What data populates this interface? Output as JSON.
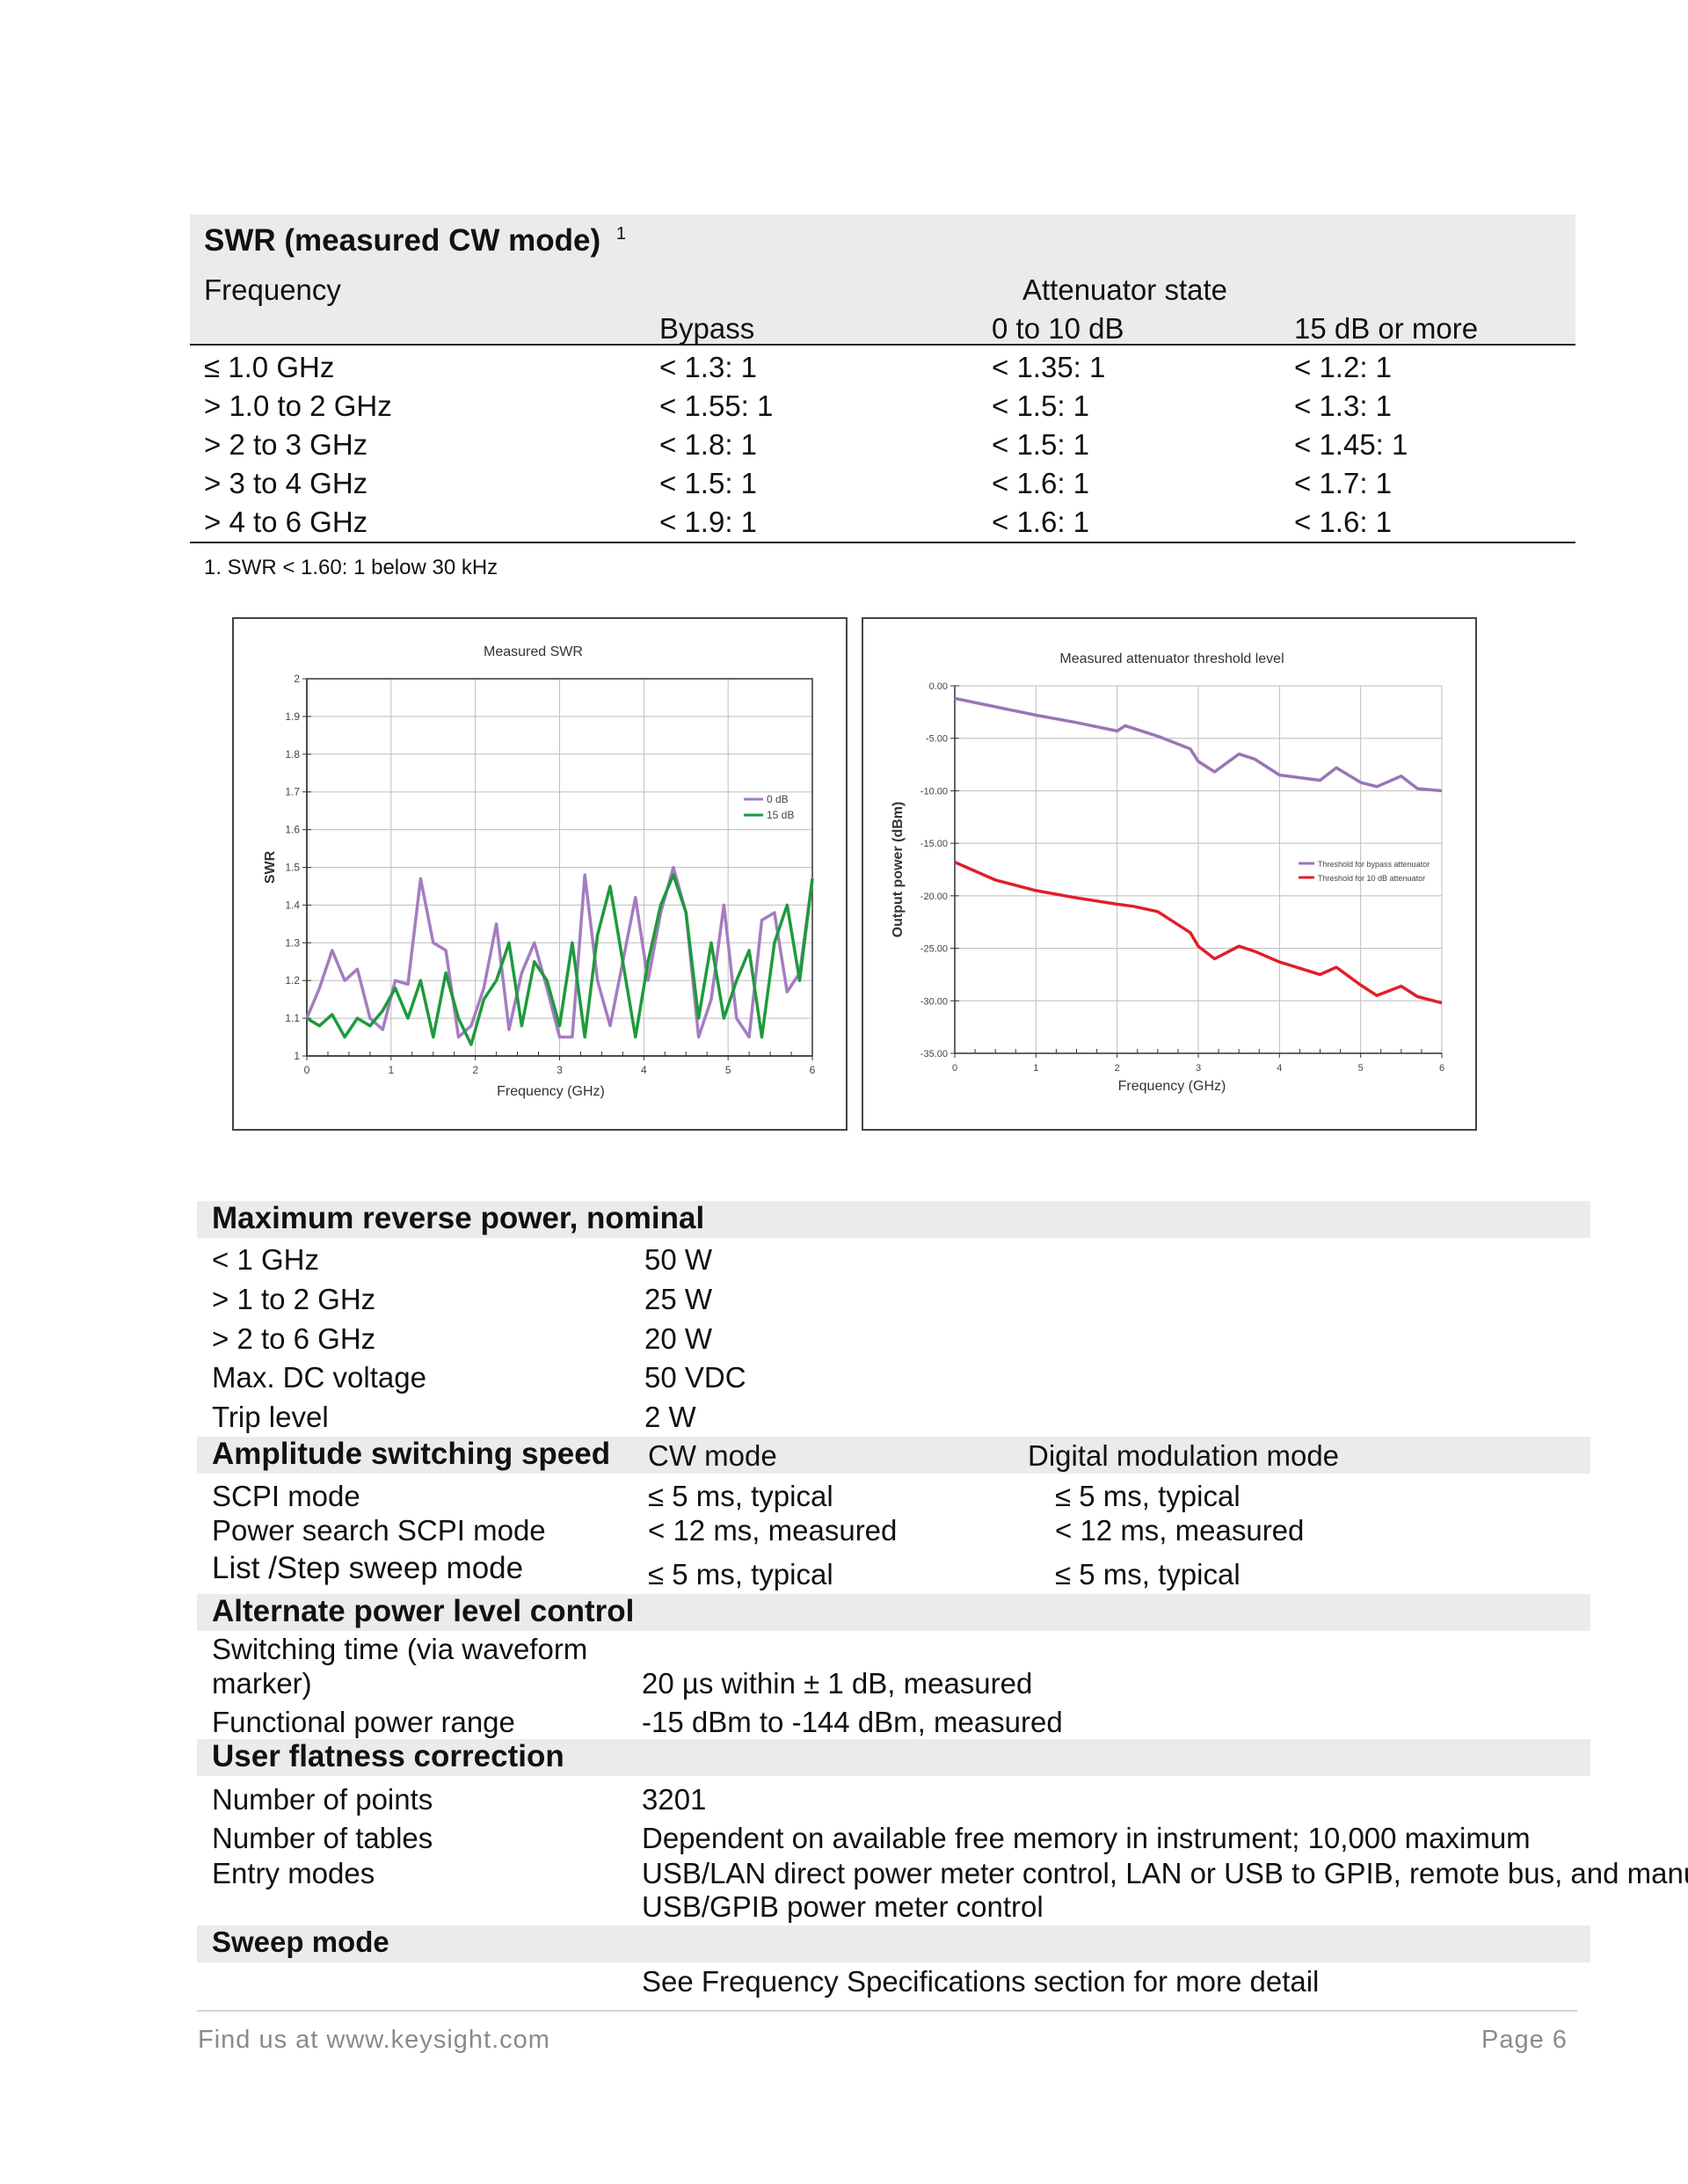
{
  "swr": {
    "title": "SWR (measured CW mode)",
    "title_note": "1",
    "frequency_label": "Frequency",
    "attenuator_label": "Attenuator state",
    "columns": [
      "Bypass",
      "0 to 10 dB",
      "15 dB or more"
    ],
    "rows": [
      {
        "freq": "≤ 1.0 GHz",
        "bypass": "< 1.3: 1",
        "a0_10": "< 1.35: 1",
        "a15": "< 1.2: 1"
      },
      {
        "freq": "> 1.0 to 2 GHz",
        "bypass": "< 1.55: 1",
        "a0_10": "< 1.5: 1",
        "a15": "< 1.3: 1"
      },
      {
        "freq": "> 2 to 3 GHz",
        "bypass": "< 1.8: 1",
        "a0_10": "< 1.5: 1",
        "a15": "< 1.45: 1"
      },
      {
        "freq": "> 3 to 4 GHz",
        "bypass": "< 1.5: 1",
        "a0_10": "< 1.6: 1",
        "a15": "< 1.7: 1"
      },
      {
        "freq": "> 4 to 6 GHz",
        "bypass": "< 1.9: 1",
        "a0_10": "< 1.6: 1",
        "a15": "< 1.6: 1"
      }
    ],
    "footnote": "1.  SWR < 1.60: 1 below 30 kHz"
  },
  "chart_data": [
    {
      "type": "line",
      "title": "Measured SWR",
      "xlabel": "Frequency (GHz)",
      "ylabel": "SWR",
      "xlim": [
        0,
        6
      ],
      "ylim": [
        1,
        2
      ],
      "x_ticks": [
        "0",
        "1",
        "2",
        "3",
        "4",
        "5",
        "6"
      ],
      "y_ticks": [
        "1",
        "1.1",
        "1.2",
        "1.3",
        "1.4",
        "1.5",
        "1.6",
        "1.7",
        "1.8",
        "1.9",
        "2"
      ],
      "grid": true,
      "legend_position": "right",
      "series": [
        {
          "name": "0 dB",
          "color": "#a57cc0",
          "x": [
            0,
            0.15,
            0.3,
            0.45,
            0.6,
            0.75,
            0.9,
            1.05,
            1.2,
            1.35,
            1.5,
            1.65,
            1.8,
            1.95,
            2.1,
            2.25,
            2.4,
            2.55,
            2.7,
            2.85,
            3.0,
            3.15,
            3.3,
            3.45,
            3.6,
            3.75,
            3.9,
            4.05,
            4.2,
            4.35,
            4.5,
            4.65,
            4.8,
            4.95,
            5.1,
            5.25,
            5.4,
            5.55,
            5.7,
            5.85,
            6.0
          ],
          "y": [
            1.1,
            1.18,
            1.28,
            1.2,
            1.23,
            1.1,
            1.07,
            1.2,
            1.19,
            1.47,
            1.3,
            1.28,
            1.05,
            1.08,
            1.18,
            1.35,
            1.07,
            1.22,
            1.3,
            1.18,
            1.05,
            1.05,
            1.48,
            1.2,
            1.08,
            1.25,
            1.42,
            1.2,
            1.38,
            1.5,
            1.38,
            1.05,
            1.15,
            1.4,
            1.1,
            1.05,
            1.36,
            1.38,
            1.17,
            1.22,
            1.47
          ]
        },
        {
          "name": "15 dB",
          "color": "#1e9a3c",
          "x": [
            0,
            0.15,
            0.3,
            0.45,
            0.6,
            0.75,
            0.9,
            1.05,
            1.2,
            1.35,
            1.5,
            1.65,
            1.8,
            1.95,
            2.1,
            2.25,
            2.4,
            2.55,
            2.7,
            2.85,
            3.0,
            3.15,
            3.3,
            3.45,
            3.6,
            3.75,
            3.9,
            4.05,
            4.2,
            4.35,
            4.5,
            4.65,
            4.8,
            4.95,
            5.1,
            5.25,
            5.4,
            5.55,
            5.7,
            5.85,
            6.0
          ],
          "y": [
            1.1,
            1.08,
            1.11,
            1.05,
            1.1,
            1.08,
            1.12,
            1.18,
            1.1,
            1.2,
            1.05,
            1.22,
            1.1,
            1.03,
            1.15,
            1.2,
            1.3,
            1.08,
            1.25,
            1.2,
            1.08,
            1.3,
            1.05,
            1.32,
            1.45,
            1.25,
            1.05,
            1.25,
            1.4,
            1.48,
            1.38,
            1.1,
            1.3,
            1.1,
            1.2,
            1.28,
            1.05,
            1.3,
            1.4,
            1.2,
            1.47
          ]
        }
      ]
    },
    {
      "type": "line",
      "title": "Measured attenuator threshold level",
      "xlabel": "Frequency  (GHz)",
      "ylabel": "Output power (dBm)",
      "xlim": [
        0,
        6
      ],
      "ylim": [
        -35,
        0
      ],
      "x_ticks": [
        "0",
        "1",
        "2",
        "3",
        "4",
        "5",
        "6"
      ],
      "y_ticks": [
        "0.00",
        "-5.00",
        "-10.00",
        "-15.00",
        "-20.00",
        "-25.00",
        "-30.00",
        "-35.00"
      ],
      "grid": true,
      "legend_position": "right",
      "series": [
        {
          "name": "Threshold for bypass attenuator",
          "color": "#9b74b5",
          "x": [
            0,
            0.5,
            1.0,
            1.5,
            2.0,
            2.1,
            2.5,
            2.9,
            3.0,
            3.2,
            3.5,
            3.7,
            4.0,
            4.5,
            4.7,
            5.0,
            5.2,
            5.5,
            5.7,
            6.0
          ],
          "y": [
            -1.2,
            -2.0,
            -2.8,
            -3.5,
            -4.3,
            -3.8,
            -4.8,
            -6.0,
            -7.2,
            -8.2,
            -6.5,
            -7.0,
            -8.5,
            -9.0,
            -7.8,
            -9.2,
            -9.6,
            -8.6,
            -9.8,
            -10.0
          ]
        },
        {
          "name": "Threshold for 10 dB attenuator",
          "color": "#e01f2b",
          "x": [
            0,
            0.5,
            1.0,
            1.5,
            2.0,
            2.2,
            2.5,
            2.9,
            3.0,
            3.2,
            3.5,
            3.7,
            4.0,
            4.5,
            4.7,
            5.0,
            5.2,
            5.5,
            5.7,
            6.0
          ],
          "y": [
            -16.8,
            -18.5,
            -19.5,
            -20.2,
            -20.8,
            -21.0,
            -21.5,
            -23.5,
            -24.8,
            -26.0,
            -24.8,
            -25.3,
            -26.3,
            -27.5,
            -26.8,
            -28.5,
            -29.5,
            -28.6,
            -29.6,
            -30.2
          ]
        }
      ]
    }
  ],
  "max_reverse_power": {
    "title": "Maximum reverse power, nominal",
    "rows": [
      {
        "label": "< 1 GHz",
        "value": "50 W"
      },
      {
        "label": "> 1 to 2 GHz",
        "value": "25 W"
      },
      {
        "label": "> 2 to 6 GHz",
        "value": "20 W"
      },
      {
        "label": "Max. DC voltage",
        "value": "50 VDC"
      },
      {
        "label": "Trip level",
        "value": "2 W"
      }
    ]
  },
  "amplitude_switching": {
    "title": "Amplitude switching speed",
    "col1": "CW mode",
    "col2": "Digital modulation mode",
    "rows": [
      {
        "label": "SCPI mode",
        "cw": "≤ 5 ms, typical",
        "dm": "≤ 5 ms, typical"
      },
      {
        "label": "Power search SCPI mode",
        "cw": "< 12 ms, measured",
        "dm": "< 12 ms, measured"
      },
      {
        "label": "List /Step sweep mode",
        "cw": "≤ 5 ms, typical",
        "dm": "≤ 5 ms, typical"
      }
    ]
  },
  "alt_power": {
    "title": "Alternate power level control",
    "row1_label_a": "Switching time (via waveform",
    "row1_label_b": "marker)",
    "row1_value": "20 µs within ± 1 dB, measured",
    "row2_label": "Functional power range",
    "row2_value": "-15 dBm to -144 dBm, measured"
  },
  "flatness": {
    "title": "User flatness correction",
    "points_label": "Number of points",
    "points_value": "3201",
    "tables_label": "Number of tables",
    "tables_value": "Dependent on available free memory in instrument; 10,000 maximum",
    "entry_label": "Entry modes",
    "entry_value_a": "USB/LAN direct power meter control, LAN or USB to GPIB, remote bus, and manual",
    "entry_value_b": "USB/GPIB power meter control"
  },
  "sweep": {
    "title": "Sweep mode",
    "value": "See Frequency Specifications section for more detail"
  },
  "footer": {
    "left": "Find us at www.keysight.com",
    "right": "Page 6"
  }
}
